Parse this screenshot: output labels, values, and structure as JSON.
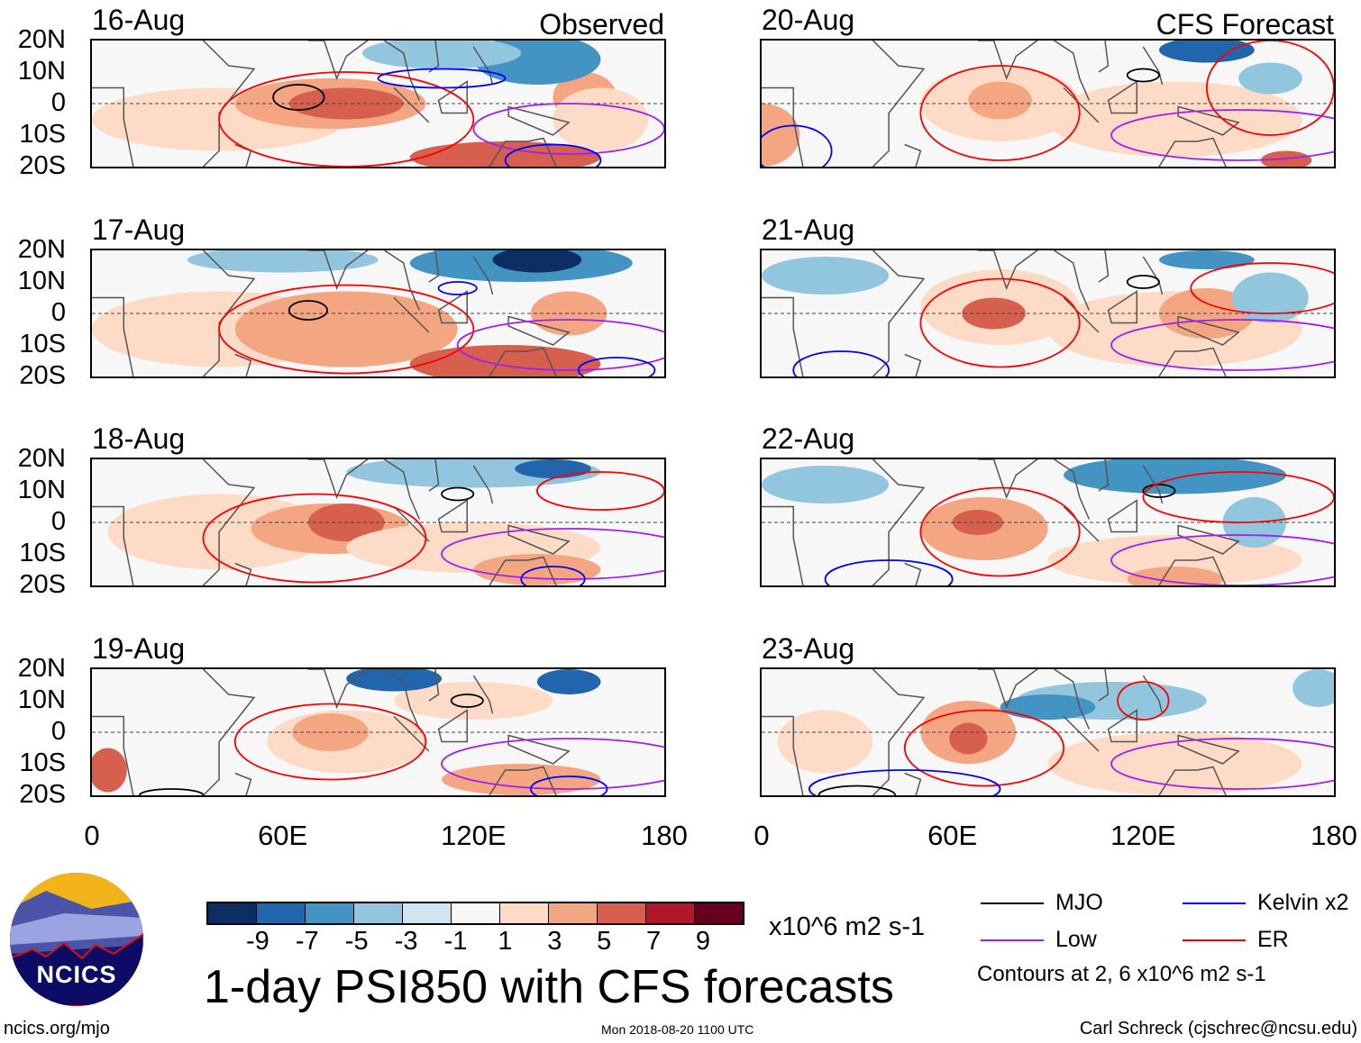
{
  "chart_data": {
    "type": "heatmap",
    "title": "1-day PSI850 with CFS forecasts",
    "variable": "PSI850 anomaly",
    "units": "x10^6 m2 s-1",
    "xlim": [
      0,
      180
    ],
    "ylim": [
      -20,
      20
    ],
    "x_ticks": [
      "0",
      "60E",
      "120E",
      "180"
    ],
    "y_ticks": [
      "20N",
      "10N",
      "0",
      "10S",
      "20S"
    ],
    "column_headers": {
      "left": "Observed",
      "right": "CFS Forecast"
    },
    "panels": [
      {
        "date": "16-Aug",
        "source": "Observed"
      },
      {
        "date": "17-Aug",
        "source": "Observed"
      },
      {
        "date": "18-Aug",
        "source": "Observed"
      },
      {
        "date": "19-Aug",
        "source": "Observed"
      },
      {
        "date": "20-Aug",
        "source": "CFS Forecast"
      },
      {
        "date": "21-Aug",
        "source": "CFS Forecast"
      },
      {
        "date": "22-Aug",
        "source": "CFS Forecast"
      },
      {
        "date": "23-Aug",
        "source": "CFS Forecast"
      }
    ],
    "colorbar": {
      "labels": [
        "-9",
        "-7",
        "-5",
        "-3",
        "-1",
        "1",
        "3",
        "5",
        "7",
        "9"
      ],
      "colors": [
        "#0b2f63",
        "#2166ac",
        "#4393c3",
        "#92c5de",
        "#d1e5f0",
        "#f7f7f7",
        "#fddbc7",
        "#f4a582",
        "#d6604d",
        "#b2182b",
        "#67001f"
      ],
      "units": "x10^6 m2 s-1"
    },
    "legend": {
      "items": [
        {
          "label": "MJO",
          "color": "#000000"
        },
        {
          "label": "Kelvin x2",
          "color": "#0000ff"
        },
        {
          "label": "Low",
          "color": "#a020f0"
        },
        {
          "label": "ER",
          "color": "#ff0000"
        }
      ],
      "note": "Contours at 2, 6 x10^6 m2 s-1"
    }
  },
  "logo": {
    "text": "NCICS"
  },
  "footer": {
    "url": "ncics.org/mjo",
    "timestamp": "Mon 2018-08-20 1100 UTC",
    "credit": "Carl Schreck (cjschrec@ncsu.edu)"
  }
}
